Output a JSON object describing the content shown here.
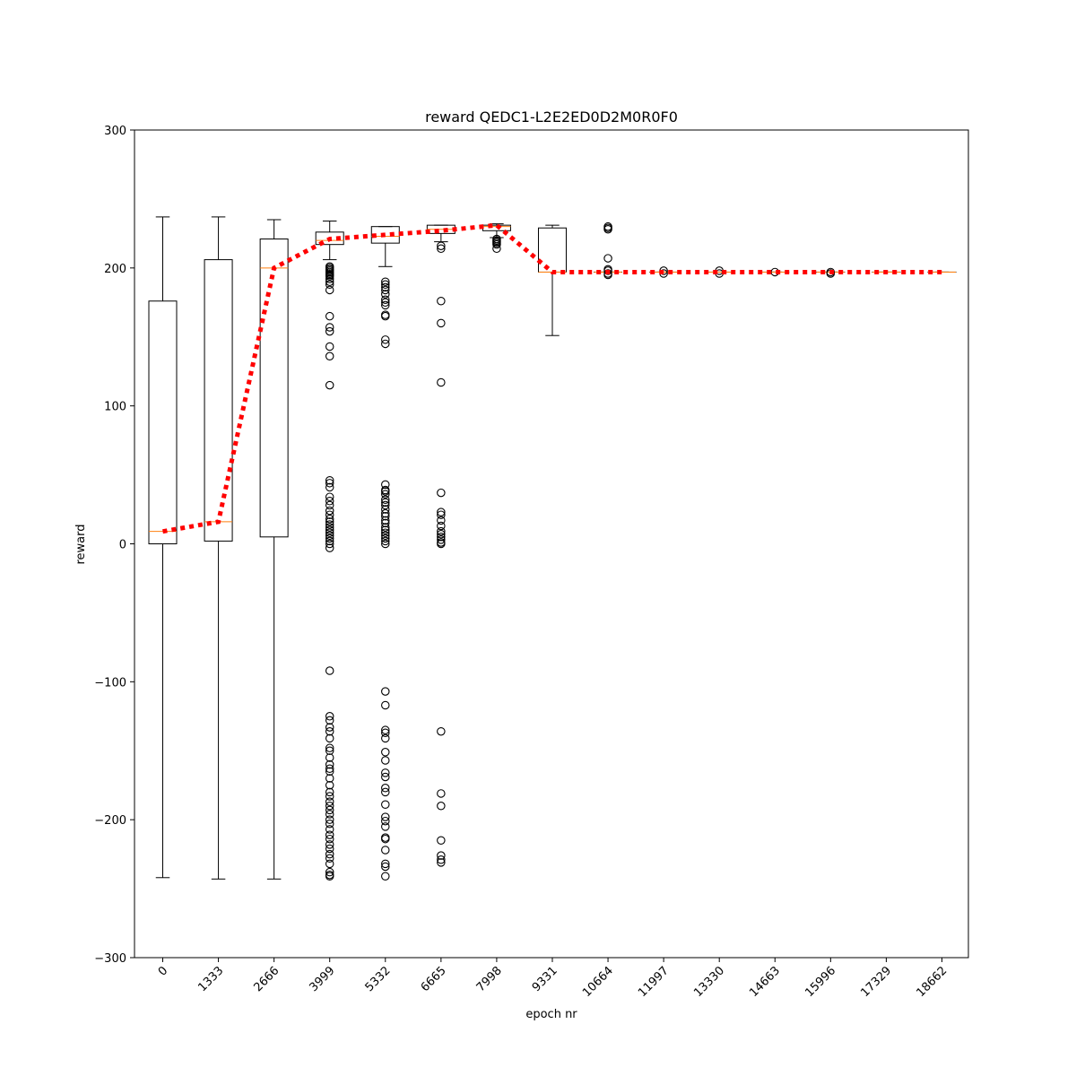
{
  "chart_data": {
    "type": "box",
    "title": "reward QEDC1-L2E2ED0D2M0R0F0",
    "xlabel": "epoch nr",
    "ylabel": "reward",
    "ylim": [
      -300,
      300
    ],
    "yticks": [
      300,
      200,
      100,
      0,
      -100,
      -200,
      -300
    ],
    "ytick_labels": [
      "300",
      "200",
      "100",
      "0",
      "−100",
      "−200",
      "−300"
    ],
    "categories": [
      "0",
      "1333",
      "2666",
      "3999",
      "5332",
      "6665",
      "7998",
      "9331",
      "10664",
      "11997",
      "13330",
      "14663",
      "15996",
      "17329",
      "18662"
    ],
    "colors": {
      "box": "#000000",
      "median": "#ff7f0e",
      "mean_line": "#ff0000",
      "outlier": "#000000"
    },
    "boxes": [
      {
        "q1": 0,
        "median": 9,
        "q3": 176,
        "whisker_low": -242,
        "whisker_high": 237,
        "outliers": []
      },
      {
        "q1": 2,
        "median": 16,
        "q3": 206,
        "whisker_low": -243,
        "whisker_high": 237,
        "outliers": []
      },
      {
        "q1": 5,
        "median": 200,
        "q3": 221,
        "whisker_low": -243,
        "whisker_high": 235,
        "outliers": []
      },
      {
        "q1": 217,
        "median": 220,
        "q3": 226,
        "whisker_low": 206,
        "whisker_high": 234,
        "outliers": [
          201,
          200,
          199,
          198,
          197,
          196,
          195,
          194,
          192,
          190,
          188,
          184,
          165,
          157,
          154,
          143,
          136,
          115,
          46,
          44,
          41,
          34,
          31,
          28,
          24,
          21,
          18,
          16,
          14,
          12,
          10,
          8,
          6,
          4,
          2,
          0,
          -3,
          -92,
          -125,
          -128,
          -133,
          -136,
          -141,
          -148,
          -150,
          -155,
          -160,
          -163,
          -165,
          -170,
          -175,
          -180,
          -183,
          -187,
          -190,
          -193,
          -196,
          -200,
          -203,
          -207,
          -211,
          -214,
          -218,
          -221,
          -225,
          -228,
          -232,
          -238,
          -240,
          -241
        ]
      },
      {
        "q1": 218,
        "median": 223,
        "q3": 230,
        "whisker_low": 201,
        "whisker_high": 230,
        "outliers": [
          190,
          188,
          186,
          184,
          181,
          177,
          175,
          173,
          166,
          165,
          148,
          145,
          43,
          39,
          38,
          36,
          32,
          30,
          28,
          25,
          22,
          20,
          17,
          15,
          12,
          10,
          8,
          6,
          4,
          2,
          0,
          -107,
          -117,
          -135,
          -137,
          -141,
          -151,
          -157,
          -166,
          -169,
          -177,
          -180,
          -189,
          -198,
          -201,
          -205,
          -213,
          -214,
          -222,
          -232,
          -234,
          -241
        ]
      },
      {
        "q1": 225,
        "median": 228,
        "q3": 231,
        "whisker_low": 219,
        "whisker_high": 231,
        "outliers": [
          216,
          214,
          176,
          160,
          117,
          37,
          23,
          21,
          17,
          13,
          9,
          7,
          5,
          3,
          1,
          0,
          -136,
          -181,
          -190,
          -215,
          -226,
          -229,
          -231
        ]
      },
      {
        "q1": 227,
        "median": 230,
        "q3": 231,
        "whisker_low": 222,
        "whisker_high": 232,
        "outliers": [
          221,
          220,
          219,
          218,
          217,
          214
        ]
      },
      {
        "q1": 197,
        "median": 197,
        "q3": 229,
        "whisker_low": 151,
        "whisker_high": 231,
        "outliers": []
      },
      {
        "q1": 197,
        "median": 197,
        "q3": 197,
        "whisker_low": 197,
        "whisker_high": 197,
        "outliers": [
          230,
          229,
          228,
          207,
          199,
          198,
          196,
          195
        ]
      },
      {
        "q1": 197,
        "median": 197,
        "q3": 197,
        "whisker_low": 197,
        "whisker_high": 197,
        "outliers": [
          198,
          196
        ]
      },
      {
        "q1": 197,
        "median": 197,
        "q3": 197,
        "whisker_low": 197,
        "whisker_high": 197,
        "outliers": [
          198,
          196
        ]
      },
      {
        "q1": 197,
        "median": 197,
        "q3": 197,
        "whisker_low": 197,
        "whisker_high": 197,
        "outliers": [
          197
        ]
      },
      {
        "q1": 197,
        "median": 197,
        "q3": 197,
        "whisker_low": 197,
        "whisker_high": 197,
        "outliers": [
          197,
          196
        ]
      },
      {
        "q1": 197,
        "median": 197,
        "q3": 197,
        "whisker_low": 197,
        "whisker_high": 197,
        "outliers": []
      },
      {
        "q1": 197,
        "median": 197,
        "q3": 197,
        "whisker_low": 197,
        "whisker_high": 197,
        "outliers": []
      }
    ],
    "mean_line": [
      9,
      16,
      200,
      221,
      224,
      227,
      231,
      197,
      197,
      197,
      197,
      197,
      197,
      197,
      197
    ]
  }
}
